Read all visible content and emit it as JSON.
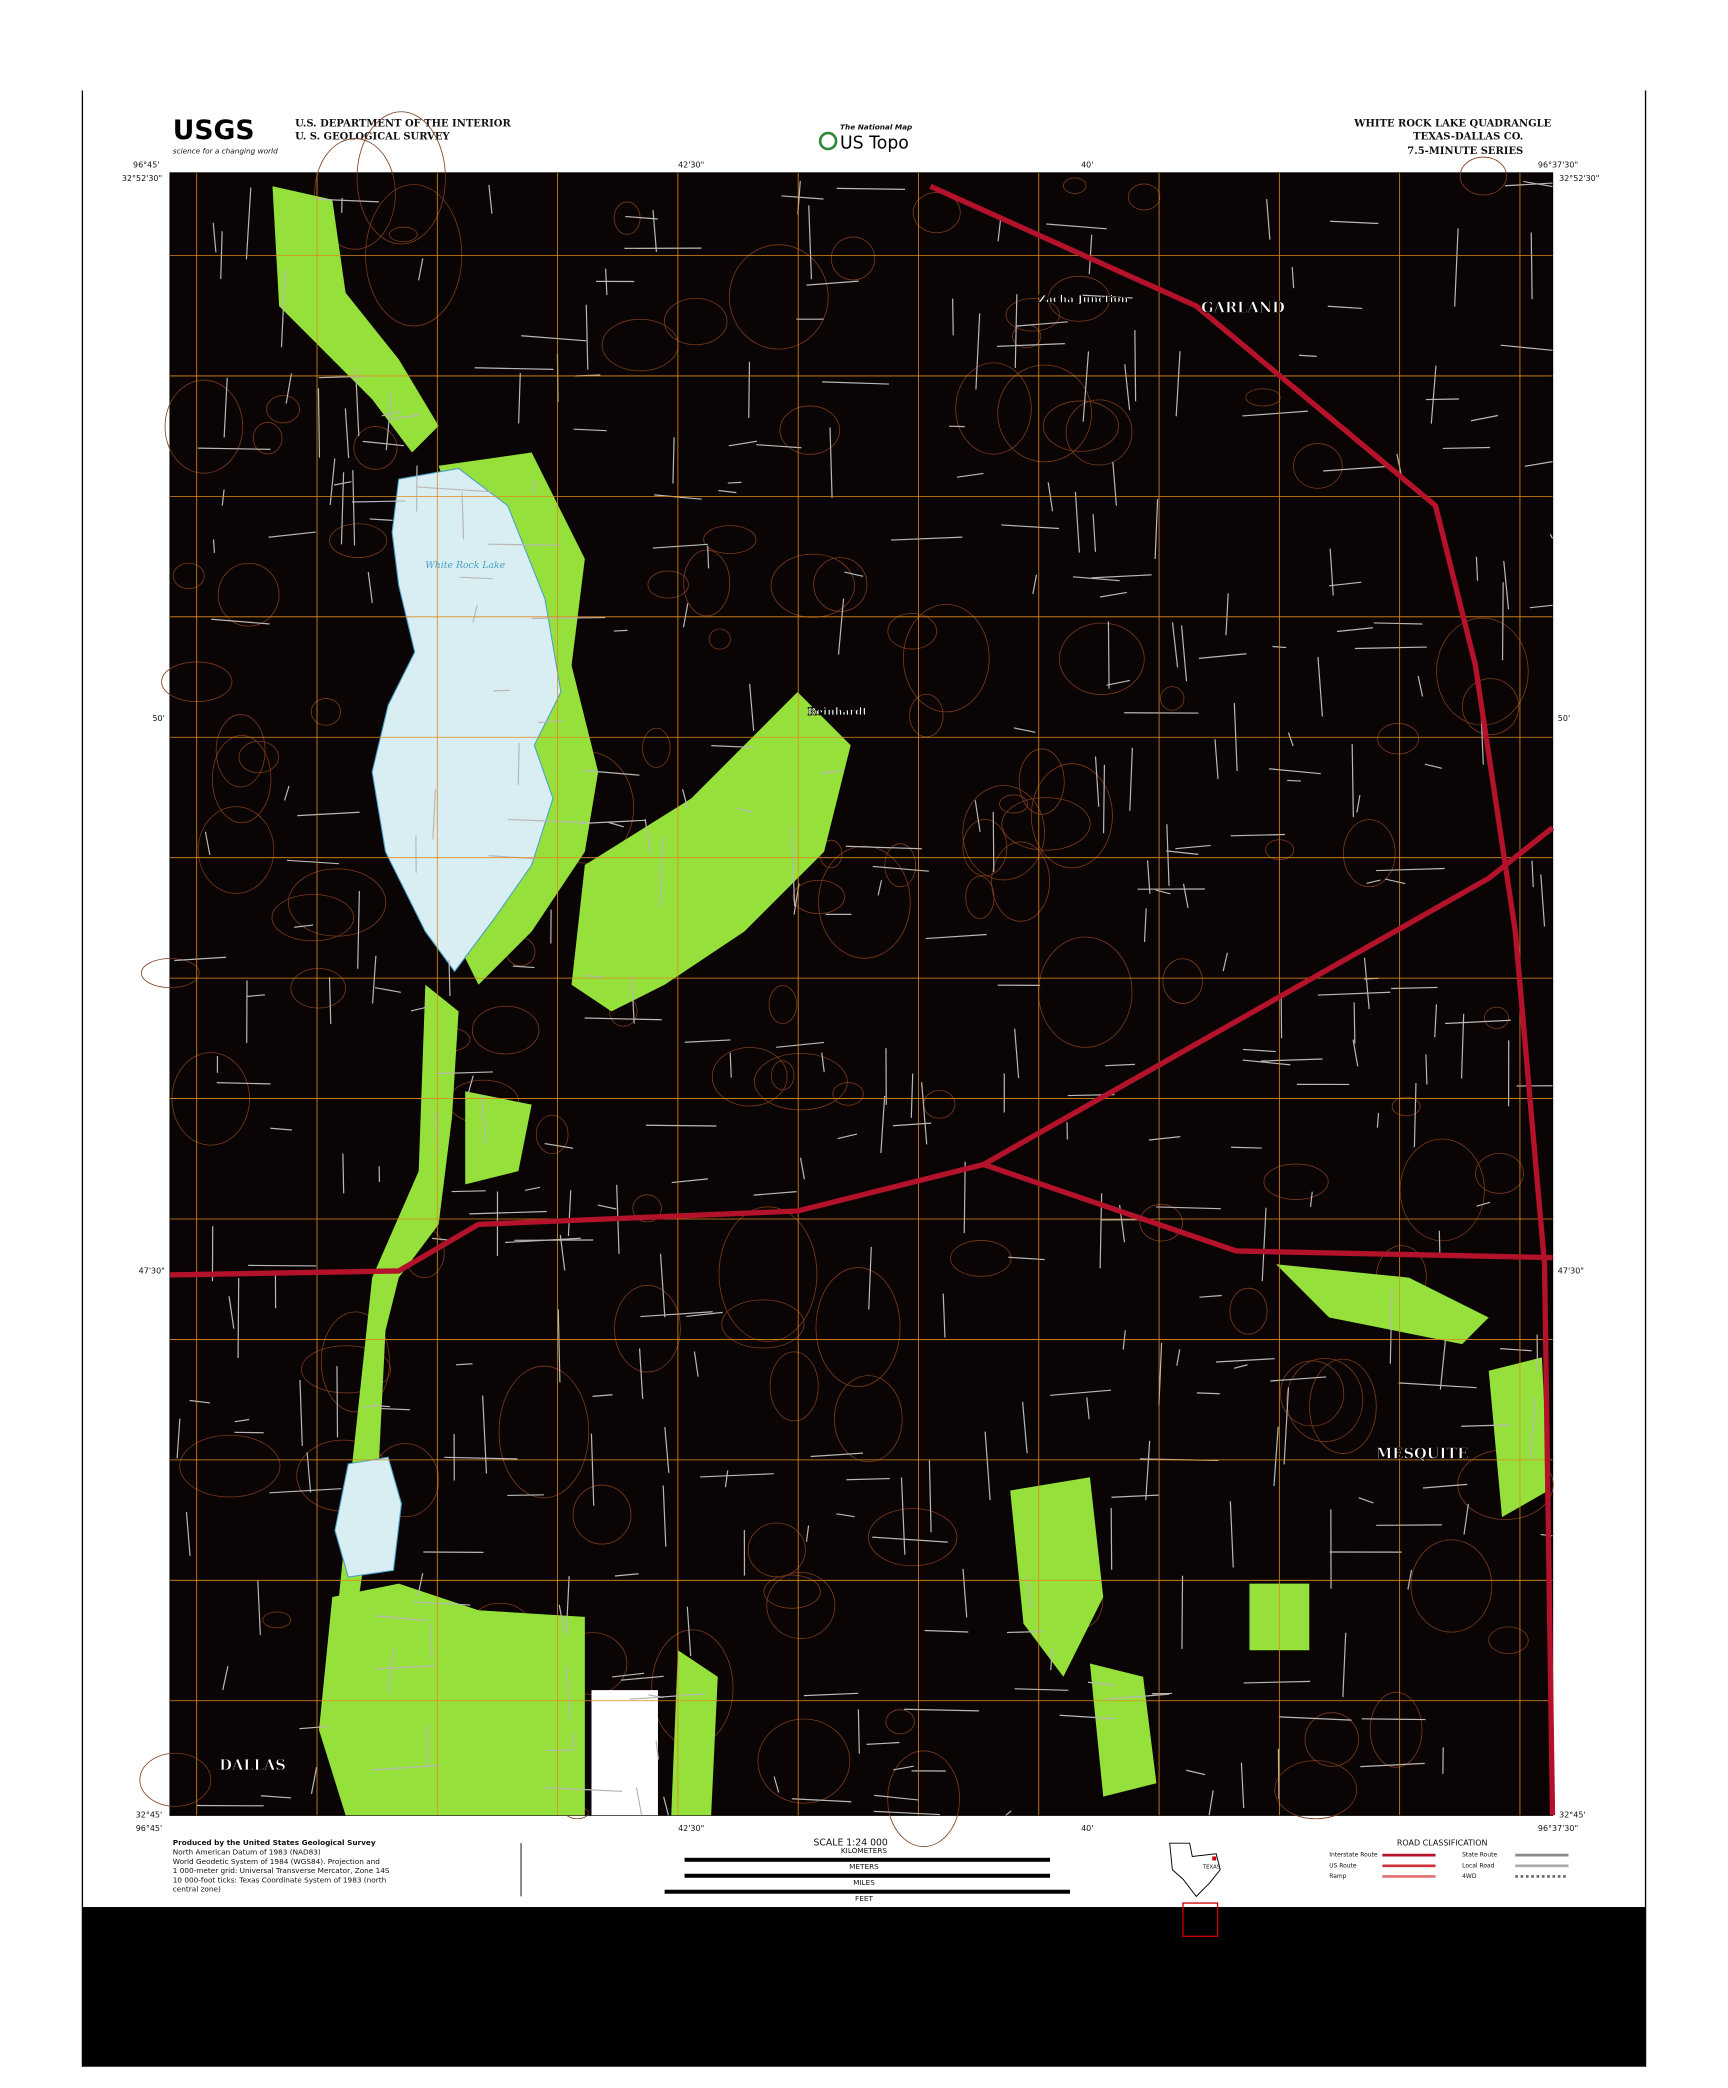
{
  "header": {
    "agency_logo": "USGS",
    "agency_tagline": "science for a changing world",
    "department": "U.S. DEPARTMENT OF THE INTERIOR",
    "survey": "U. S. GEOLOGICAL SURVEY",
    "product_kicker": "The National Map",
    "product": "US Topo",
    "quadrangle": "WHITE ROCK LAKE QUADRANGLE",
    "state_county": "TEXAS-DALLAS CO.",
    "series": "7.5-MINUTE SERIES"
  },
  "map": {
    "places": [
      "GARLAND",
      "MESQUITE",
      "DALLAS",
      "Reinhardt",
      "Zacha Junction"
    ],
    "water": [
      "White Rock Lake"
    ],
    "coords": {
      "nw_lat": "32°52'30\"",
      "nw_lon": "96°45'",
      "ne_lon": "96°37'30\"",
      "ne_lat": "32°52'30\"",
      "sw_lat": "32°45'",
      "sw_lon": "96°45'",
      "se_lon": "96°37'30\"",
      "se_lat": "32°45'",
      "mid_lat_w": "47'30\"",
      "mid_lat_e": "47'30\"",
      "lat_50_w": "50'",
      "lat_50_e": "50'",
      "lon_4230_n": "42'30\"",
      "lon_40_n": "40'",
      "lon_4230_s": "42'30\"",
      "lon_40_s": "40'"
    }
  },
  "footer": {
    "credits": [
      "Produced by the United States Geological Survey",
      "North American Datum of 1983 (NAD83)",
      "World Geodetic System of 1984 (WGS84). Projection and",
      "1 000-meter grid: Universal Transverse Mercator, Zone 14S",
      "10 000-foot ticks: Texas Coordinate System of 1983 (north",
      "central zone)"
    ],
    "scale": "SCALE 1:24 000",
    "scale_units": [
      "KILOMETERS",
      "METERS",
      "MILES",
      "FEET"
    ],
    "state": "TEXAS",
    "road_title": "ROAD CLASSIFICATION",
    "road_types": [
      "Interstate Route",
      "US Route",
      "Ramp",
      "State Route",
      "Local Road",
      "4WD"
    ]
  }
}
